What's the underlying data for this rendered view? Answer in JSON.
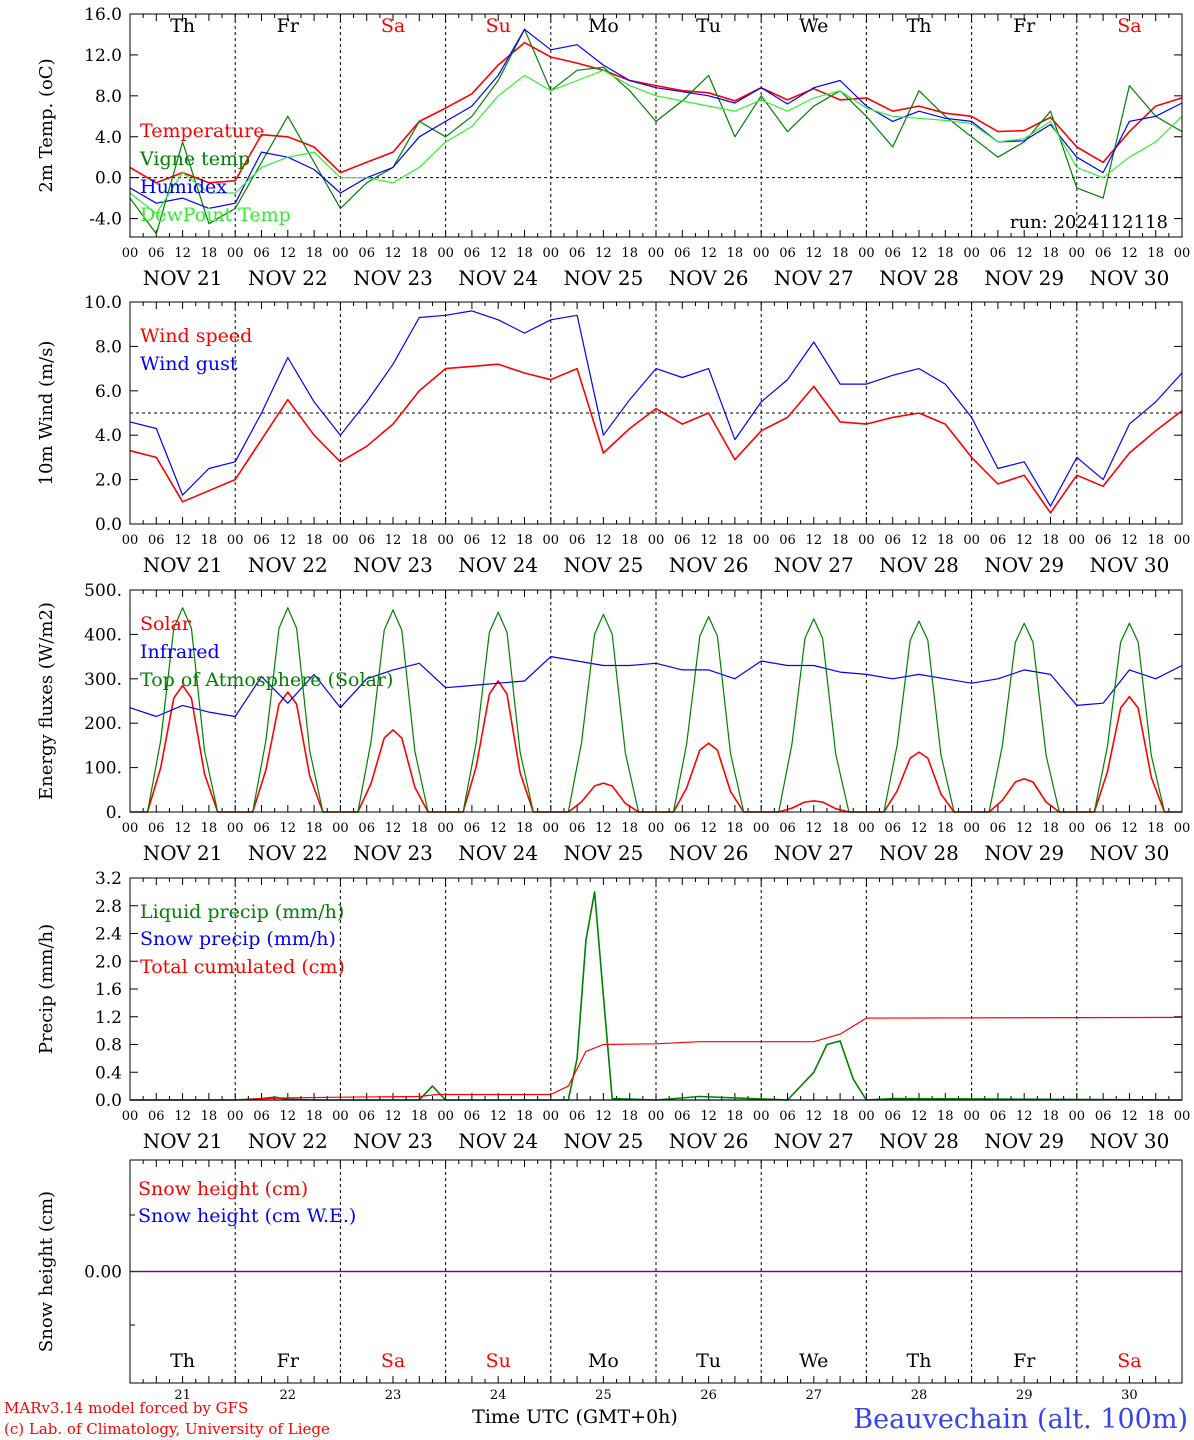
{
  "colors": {
    "red": "#ff0000",
    "green": "#008000",
    "blue": "#0000ff",
    "lime": "#33ee33",
    "purple": "#7f007f",
    "axis": "#000000"
  },
  "common": {
    "x_ticks": [
      "00",
      "06",
      "12",
      "18",
      "00",
      "06",
      "12",
      "18",
      "00",
      "06",
      "12",
      "18",
      "00",
      "06",
      "12",
      "18",
      "00",
      "06",
      "12",
      "18",
      "00",
      "06",
      "12",
      "18",
      "00",
      "06",
      "12",
      "18",
      "00",
      "06",
      "12",
      "18",
      "00",
      "06",
      "12",
      "18",
      "00",
      "06",
      "12",
      "18",
      "00"
    ],
    "dates": [
      "NOV 21",
      "NOV 22",
      "NOV 23",
      "NOV 24",
      "NOV 25",
      "NOV 26",
      "NOV 27",
      "NOV 28",
      "NOV 29",
      "NOV 30"
    ],
    "weekdays": [
      "Th",
      "Fr",
      "Sa",
      "Su",
      "Mo",
      "Tu",
      "We",
      "Th",
      "Fr",
      "Sa"
    ],
    "weekday_colors": [
      "#000000",
      "#000000",
      "#ff0000",
      "#ff0000",
      "#000000",
      "#000000",
      "#000000",
      "#000000",
      "#000000",
      "#ff0000"
    ],
    "day_numbers": [
      "21",
      "22",
      "23",
      "24",
      "25",
      "26",
      "27",
      "28",
      "29",
      "30"
    ]
  },
  "run_label": "run: 2024112118",
  "footer": {
    "xlabel": "Time UTC (GMT+0h)",
    "credit1": "MARv3.14 model forced by GFS",
    "credit2": "(c) Lab. of Climatology, University of Liege",
    "station": "Beauvechain (alt. 100m)"
  },
  "chart_data": [
    {
      "type": "line",
      "ylabel": "2m Temp. (oC)",
      "ylim": [
        -5.8,
        16.0
      ],
      "yticks": [
        "16.0",
        "12.0",
        "8.0",
        "4.0",
        "0.0",
        "-4.0"
      ],
      "ytick_values": [
        16,
        12,
        8,
        4,
        0,
        -4
      ],
      "ref_line": 0,
      "x_unit": "hours since NOV 21 00 UTC",
      "series": [
        {
          "name": "Temperature",
          "color": "#ff0000",
          "x": [
            0,
            6,
            12,
            18,
            24,
            30,
            36,
            42,
            48,
            54,
            60,
            66,
            72,
            78,
            84,
            90,
            96,
            102,
            108,
            114,
            120,
            126,
            132,
            138,
            144,
            150,
            156,
            162,
            168,
            174,
            180,
            186,
            192,
            198,
            204,
            210,
            216,
            222,
            228,
            234,
            240
          ],
          "y": [
            1.0,
            -0.5,
            0.5,
            -0.5,
            -0.3,
            4.2,
            4.0,
            3.0,
            0.5,
            1.5,
            2.5,
            5.5,
            6.8,
            8.2,
            11.0,
            13.2,
            11.8,
            11.2,
            10.5,
            9.5,
            9.0,
            8.5,
            8.3,
            7.5,
            8.8,
            7.6,
            8.7,
            7.6,
            7.8,
            6.5,
            7.0,
            6.3,
            6.0,
            4.5,
            4.6,
            5.9,
            3.0,
            1.5,
            4.5,
            7.0,
            7.8
          ]
        },
        {
          "name": "Vigne temp",
          "color": "#008000",
          "x": [
            0,
            6,
            12,
            18,
            24,
            30,
            36,
            42,
            48,
            54,
            60,
            66,
            72,
            78,
            84,
            90,
            96,
            102,
            108,
            114,
            120,
            126,
            132,
            138,
            144,
            150,
            156,
            162,
            168,
            174,
            180,
            186,
            192,
            198,
            204,
            210,
            216,
            222,
            228,
            234,
            240
          ],
          "y": [
            -2.0,
            -5.5,
            3.5,
            -4.5,
            -3.0,
            1.5,
            6.0,
            1.5,
            -3.0,
            -0.5,
            1.0,
            5.5,
            4.0,
            6.0,
            9.5,
            14.5,
            8.5,
            10.5,
            10.8,
            8.5,
            5.5,
            7.5,
            10.0,
            4.0,
            8.0,
            4.5,
            7.0,
            8.5,
            6.0,
            3.0,
            8.5,
            6.0,
            4.0,
            2.0,
            3.5,
            6.5,
            -1.0,
            -2.0,
            9.0,
            6.0,
            4.5
          ]
        },
        {
          "name": "Humidex",
          "color": "#0000ff",
          "x": [
            0,
            6,
            12,
            18,
            24,
            30,
            36,
            42,
            48,
            54,
            60,
            66,
            72,
            78,
            84,
            90,
            96,
            102,
            108,
            114,
            120,
            126,
            132,
            138,
            144,
            150,
            156,
            162,
            168,
            174,
            180,
            186,
            192,
            198,
            204,
            210,
            216,
            222,
            228,
            234,
            240
          ],
          "y": [
            -1.0,
            -2.5,
            -2.0,
            -3.0,
            -2.5,
            2.5,
            2.0,
            0.8,
            -1.5,
            0.0,
            1.0,
            4.0,
            5.5,
            7.0,
            10.0,
            14.5,
            12.5,
            13.0,
            11.0,
            9.5,
            8.8,
            8.4,
            8.0,
            7.3,
            8.8,
            7.2,
            8.8,
            9.5,
            7.0,
            5.5,
            6.5,
            5.8,
            5.5,
            3.5,
            3.6,
            5.2,
            2.0,
            0.5,
            5.5,
            6.0,
            7.3
          ]
        },
        {
          "name": "DewPoint Temp",
          "color": "#33ee33",
          "x": [
            0,
            6,
            12,
            18,
            24,
            30,
            36,
            42,
            48,
            54,
            60,
            66,
            72,
            78,
            84,
            90,
            96,
            102,
            108,
            114,
            120,
            126,
            132,
            138,
            144,
            150,
            156,
            162,
            168,
            174,
            180,
            186,
            192,
            198,
            204,
            210,
            216,
            222,
            228,
            234,
            240
          ],
          "y": [
            -1.5,
            -3.5,
            0.5,
            -1.5,
            -1.5,
            1.0,
            2.0,
            2.5,
            0.0,
            0.0,
            -0.5,
            1.0,
            3.5,
            5.0,
            8.0,
            10.0,
            8.5,
            9.5,
            10.5,
            9.0,
            8.0,
            7.5,
            7.0,
            6.5,
            7.6,
            6.5,
            7.8,
            8.5,
            6.8,
            6.0,
            5.8,
            5.6,
            5.3,
            3.5,
            3.8,
            5.5,
            1.0,
            0.0,
            2.0,
            3.5,
            6.0
          ]
        }
      ]
    },
    {
      "type": "line",
      "ylabel": "10m Wind (m/s)",
      "ylim": [
        0.0,
        10.0
      ],
      "yticks": [
        "10.0",
        "8.0",
        "6.0",
        "4.0",
        "2.0",
        "0.0"
      ],
      "ytick_values": [
        10,
        8,
        6,
        4,
        2,
        0
      ],
      "ref_line": 5,
      "x_unit": "hours since NOV 21 00 UTC",
      "series": [
        {
          "name": "Wind speed",
          "color": "#ff0000",
          "x": [
            0,
            6,
            12,
            18,
            24,
            30,
            36,
            42,
            48,
            54,
            60,
            66,
            72,
            78,
            84,
            90,
            96,
            102,
            108,
            114,
            120,
            126,
            132,
            138,
            144,
            150,
            156,
            162,
            168,
            174,
            180,
            186,
            192,
            198,
            204,
            210,
            216,
            222,
            228,
            234,
            240
          ],
          "y": [
            3.3,
            3.0,
            1.0,
            1.5,
            2.0,
            3.8,
            5.6,
            4.0,
            2.8,
            3.5,
            4.5,
            6.0,
            7.0,
            7.1,
            7.2,
            6.8,
            6.5,
            7.0,
            3.2,
            4.3,
            5.2,
            4.5,
            5.0,
            2.9,
            4.2,
            4.8,
            6.2,
            4.6,
            4.5,
            4.8,
            5.0,
            4.5,
            3.0,
            1.8,
            2.2,
            0.5,
            2.2,
            1.7,
            3.2,
            4.2,
            5.1
          ]
        },
        {
          "name": "Wind gust",
          "color": "#0000ff",
          "x": [
            0,
            6,
            12,
            18,
            24,
            30,
            36,
            42,
            48,
            54,
            60,
            66,
            72,
            78,
            84,
            90,
            96,
            102,
            108,
            114,
            120,
            126,
            132,
            138,
            144,
            150,
            156,
            162,
            168,
            174,
            180,
            186,
            192,
            198,
            204,
            210,
            216,
            222,
            228,
            234,
            240
          ],
          "y": [
            4.6,
            4.3,
            1.3,
            2.5,
            2.8,
            5.0,
            7.5,
            5.5,
            4.0,
            5.5,
            7.2,
            9.3,
            9.4,
            9.6,
            9.2,
            8.6,
            9.2,
            9.4,
            4.0,
            5.6,
            7.0,
            6.6,
            7.0,
            3.8,
            5.5,
            6.5,
            8.2,
            6.3,
            6.3,
            6.7,
            7.0,
            6.3,
            4.8,
            2.5,
            2.8,
            0.8,
            3.0,
            2.0,
            4.5,
            5.5,
            6.8
          ]
        }
      ]
    },
    {
      "type": "line",
      "ylabel": "Energy fluxes (W/m2)",
      "ylim": [
        0,
        500
      ],
      "yticks": [
        "500.",
        "400.",
        "300.",
        "200.",
        "100.",
        "0."
      ],
      "ytick_values": [
        500,
        400,
        300,
        200,
        100,
        0
      ],
      "x_unit": "hours since NOV 21 00 UTC",
      "series": [
        {
          "name": "Solar",
          "color": "#ff0000",
          "peaks_at_12h_of_each_day": [
            285,
            270,
            185,
            295,
            65,
            155,
            25,
            135,
            75,
            260
          ]
        },
        {
          "name": "Infrared",
          "color": "#0000ff",
          "x": [
            0,
            6,
            12,
            18,
            24,
            30,
            36,
            42,
            48,
            54,
            60,
            66,
            72,
            78,
            84,
            90,
            96,
            102,
            108,
            114,
            120,
            126,
            132,
            138,
            144,
            150,
            156,
            162,
            168,
            174,
            180,
            186,
            192,
            198,
            204,
            210,
            216,
            222,
            228,
            234,
            240
          ],
          "y": [
            235,
            215,
            240,
            225,
            215,
            305,
            245,
            310,
            235,
            300,
            320,
            335,
            280,
            285,
            290,
            295,
            350,
            340,
            330,
            330,
            335,
            320,
            320,
            300,
            340,
            330,
            330,
            315,
            310,
            300,
            310,
            300,
            290,
            300,
            320,
            310,
            240,
            245,
            320,
            300,
            330
          ]
        },
        {
          "name": "Top of Atmosphere (Solar)",
          "color": "#008000",
          "peaks_at_12h_of_each_day": [
            460,
            460,
            455,
            450,
            445,
            440,
            435,
            430,
            425,
            425
          ]
        }
      ]
    },
    {
      "type": "line",
      "ylabel": "Precip (mm/h)",
      "ylim": [
        0.0,
        3.2
      ],
      "yticks": [
        "3.2",
        "2.8",
        "2.4",
        "2.0",
        "1.6",
        "1.2",
        "0.8",
        "0.4",
        "0.0"
      ],
      "ytick_values": [
        3.2,
        2.8,
        2.4,
        2.0,
        1.6,
        1.2,
        0.8,
        0.4,
        0
      ],
      "x_unit": "hours since NOV 21 00 UTC",
      "series": [
        {
          "name": "Liquid precip (mm/h)",
          "color": "#008000",
          "x": [
            0,
            24,
            30,
            33,
            36,
            42,
            48,
            66,
            69,
            72,
            96,
            100,
            102,
            104,
            106,
            108,
            110,
            120,
            130,
            150,
            156,
            159,
            162,
            165,
            168,
            174,
            240
          ],
          "y": [
            0,
            0,
            0.02,
            0.04,
            0.01,
            0,
            0,
            0,
            0.2,
            0,
            0,
            0,
            0.6,
            2.3,
            3.0,
            1.5,
            0.02,
            0,
            0.05,
            0,
            0.4,
            0.8,
            0.85,
            0.3,
            0,
            0.02,
            0
          ]
        },
        {
          "name": "Snow precip (mm/h)",
          "color": "#0000ff",
          "x": [
            0,
            240
          ],
          "y": [
            0,
            0
          ]
        },
        {
          "name": "Total cumulated (cm)",
          "color": "#ff0000",
          "x": [
            0,
            24,
            30,
            36,
            48,
            66,
            70,
            96,
            100,
            104,
            108,
            120,
            130,
            144,
            150,
            156,
            162,
            168,
            240
          ],
          "y": [
            0,
            0,
            0.02,
            0.03,
            0.04,
            0.05,
            0.08,
            0.08,
            0.2,
            0.7,
            0.8,
            0.81,
            0.84,
            0.84,
            0.84,
            0.84,
            0.95,
            1.18,
            1.19
          ]
        }
      ]
    },
    {
      "type": "line",
      "ylabel": "Snow height (cm)",
      "yticks": [
        "0.00"
      ],
      "ytick_values": [
        0
      ],
      "x_unit": "hours since NOV 21 00 UTC",
      "series": [
        {
          "name": "Snow height (cm)",
          "color": "#ff0000",
          "x": [
            0,
            240
          ],
          "y": [
            0,
            0
          ]
        },
        {
          "name": "Snow height (cm W.E.)",
          "color": "#0000ff",
          "x": [
            0,
            240
          ],
          "y": [
            0,
            0
          ]
        }
      ]
    }
  ]
}
